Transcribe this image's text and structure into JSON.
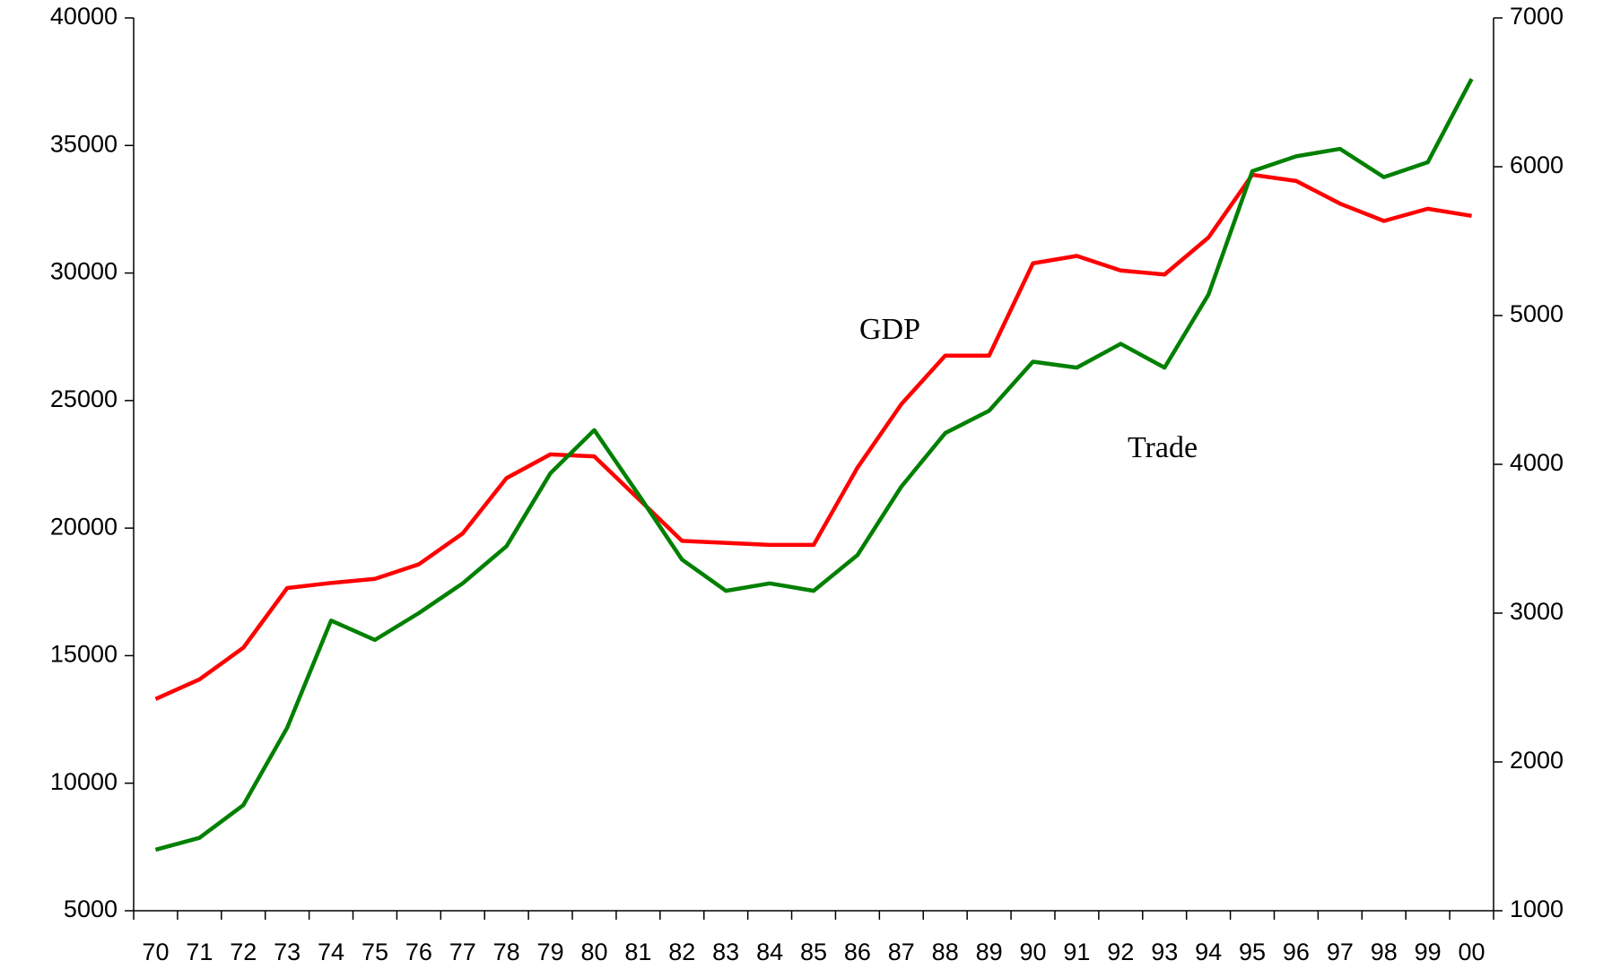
{
  "chart_data": {
    "type": "line",
    "categories": [
      "70",
      "71",
      "72",
      "73",
      "74",
      "75",
      "76",
      "77",
      "78",
      "79",
      "80",
      "81",
      "82",
      "83",
      "84",
      "85",
      "86",
      "87",
      "88",
      "89",
      "90",
      "91",
      "92",
      "93",
      "94",
      "95",
      "96",
      "97",
      "98",
      "99",
      "00"
    ],
    "series": [
      {
        "name": "GDP",
        "color": "#ff0000",
        "values": [
          13300,
          14070,
          15310,
          17650,
          17850,
          18010,
          18580,
          19790,
          21960,
          22890,
          22810,
          21160,
          19500,
          19420,
          19340,
          19340,
          22370,
          24860,
          26760,
          26760,
          30380,
          30670,
          30100,
          29940,
          31390,
          33850,
          33610,
          32720,
          32040,
          32520,
          32240
        ]
      },
      {
        "name": "Trade",
        "color": "#008000",
        "axis": "y2",
        "values": [
          1410,
          1490,
          1710,
          2230,
          2950,
          2820,
          3000,
          3200,
          3450,
          3940,
          4230,
          3800,
          3360,
          3150,
          3200,
          3150,
          3390,
          3850,
          4210,
          4360,
          4690,
          4650,
          4810,
          4650,
          5140,
          5970,
          6070,
          6120,
          5930,
          6030,
          6590
        ]
      }
    ],
    "ylim": [
      5000,
      40000
    ],
    "yticks": [
      5000,
      10000,
      15000,
      20000,
      25000,
      30000,
      35000,
      40000
    ],
    "y2lim": [
      1000,
      7000
    ],
    "y2ticks": [
      1000,
      2000,
      3000,
      4000,
      5000,
      6000,
      7000
    ]
  }
}
